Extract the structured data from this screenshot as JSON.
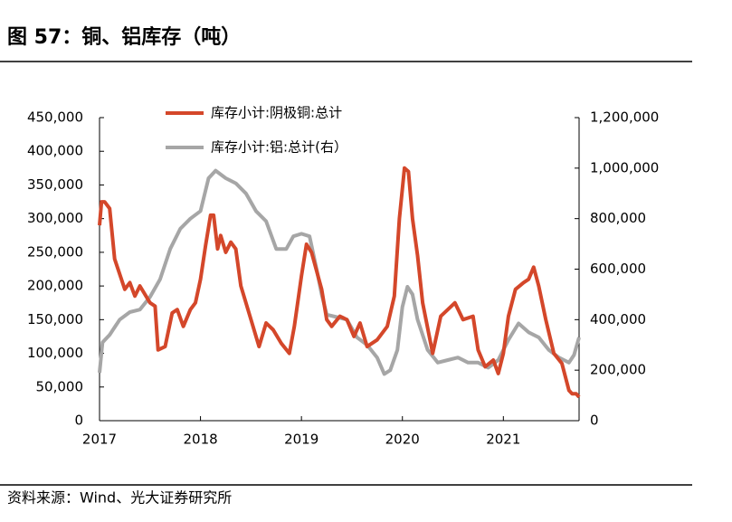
{
  "chart_data": {
    "type": "line",
    "title": "图 57：铜、铝库存（吨）",
    "source": "资料来源：Wind、光大证券研究所",
    "xlim": [
      2017,
      2021.75
    ],
    "xticks": [
      2017,
      2018,
      2019,
      2020,
      2021
    ],
    "ylim": [
      0,
      450000
    ],
    "yticks": [
      0,
      {
        "value": 50000,
        "label": "50,000"
      },
      {
        "value": 100000,
        "label": "100,000"
      },
      {
        "value": 150000,
        "label": "150,000"
      },
      {
        "value": 200000,
        "label": "200,000"
      },
      {
        "value": 250000,
        "label": "250,000"
      },
      {
        "value": 300000,
        "label": "300,000"
      },
      {
        "value": 350000,
        "label": "350,000"
      },
      {
        "value": 400000,
        "label": "400,000"
      },
      {
        "value": 450000,
        "label": "450,000"
      }
    ],
    "y2lim": [
      0,
      1200000
    ],
    "y2ticks": [
      0,
      {
        "value": 200000,
        "label": "200,000"
      },
      {
        "value": 400000,
        "label": "400,000"
      },
      {
        "value": 600000,
        "label": "600,000"
      },
      {
        "value": 800000,
        "label": "800,000"
      },
      {
        "value": 1000000,
        "label": "1,000,000"
      },
      {
        "value": 1200000,
        "label": "1,200,000"
      }
    ],
    "series": [
      {
        "name": "库存小计:阴极铜:总计",
        "color": "#d4472a",
        "x": [
          2017.0,
          2017.02,
          2017.05,
          2017.1,
          2017.15,
          2017.25,
          2017.3,
          2017.35,
          2017.4,
          2017.5,
          2017.55,
          2017.58,
          2017.65,
          2017.72,
          2017.77,
          2017.83,
          2017.9,
          2017.95,
          2018.0,
          2018.05,
          2018.1,
          2018.13,
          2018.17,
          2018.2,
          2018.25,
          2018.3,
          2018.35,
          2018.4,
          2018.5,
          2018.58,
          2018.65,
          2018.72,
          2018.8,
          2018.88,
          2018.93,
          2019.0,
          2019.05,
          2019.1,
          2019.2,
          2019.25,
          2019.3,
          2019.38,
          2019.45,
          2019.52,
          2019.58,
          2019.65,
          2019.75,
          2019.85,
          2019.92,
          2019.97,
          2020.02,
          2020.06,
          2020.1,
          2020.15,
          2020.2,
          2020.3,
          2020.38,
          2020.45,
          2020.52,
          2020.6,
          2020.7,
          2020.75,
          2020.82,
          2020.9,
          2020.95,
          2021.0,
          2021.05,
          2021.12,
          2021.2,
          2021.25,
          2021.3,
          2021.35,
          2021.42,
          2021.5,
          2021.58,
          2021.65,
          2021.68,
          2021.72,
          2021.75
        ],
        "values": [
          290000,
          325000,
          325000,
          315000,
          240000,
          195000,
          205000,
          185000,
          200000,
          175000,
          170000,
          105000,
          110000,
          160000,
          165000,
          140000,
          165000,
          175000,
          210000,
          260000,
          305000,
          305000,
          255000,
          275000,
          250000,
          265000,
          255000,
          200000,
          150000,
          110000,
          145000,
          135000,
          115000,
          100000,
          140000,
          215000,
          262000,
          250000,
          195000,
          150000,
          140000,
          155000,
          150000,
          125000,
          145000,
          110000,
          120000,
          140000,
          185000,
          300000,
          375000,
          370000,
          300000,
          245000,
          175000,
          100000,
          155000,
          165000,
          175000,
          150000,
          155000,
          105000,
          80000,
          90000,
          70000,
          100000,
          155000,
          195000,
          205000,
          210000,
          228000,
          200000,
          150000,
          100000,
          85000,
          45000,
          40000,
          40000,
          35000
        ]
      },
      {
        "name": "库存小计:铝:总计(右）",
        "color": "#a6a6a6",
        "axis": "y2",
        "x": [
          2017.0,
          2017.03,
          2017.1,
          2017.2,
          2017.3,
          2017.4,
          2017.5,
          2017.6,
          2017.7,
          2017.8,
          2017.9,
          2018.0,
          2018.08,
          2018.15,
          2018.25,
          2018.35,
          2018.45,
          2018.55,
          2018.65,
          2018.75,
          2018.85,
          2018.92,
          2019.0,
          2019.08,
          2019.15,
          2019.2,
          2019.25,
          2019.35,
          2019.45,
          2019.55,
          2019.65,
          2019.75,
          2019.82,
          2019.88,
          2019.95,
          2020.0,
          2020.05,
          2020.1,
          2020.15,
          2020.25,
          2020.35,
          2020.45,
          2020.55,
          2020.65,
          2020.75,
          2020.85,
          2020.95,
          2021.05,
          2021.15,
          2021.25,
          2021.35,
          2021.45,
          2021.55,
          2021.6,
          2021.65,
          2021.7,
          2021.75
        ],
        "values": [
          190000,
          310000,
          340000,
          400000,
          430000,
          440000,
          490000,
          560000,
          680000,
          760000,
          800000,
          830000,
          960000,
          990000,
          960000,
          940000,
          900000,
          830000,
          790000,
          680000,
          680000,
          730000,
          740000,
          730000,
          600000,
          500000,
          420000,
          410000,
          400000,
          330000,
          300000,
          250000,
          185000,
          200000,
          280000,
          450000,
          530000,
          500000,
          400000,
          280000,
          230000,
          240000,
          250000,
          230000,
          230000,
          210000,
          240000,
          320000,
          385000,
          350000,
          330000,
          280000,
          250000,
          240000,
          230000,
          260000,
          330000
        ]
      }
    ]
  }
}
